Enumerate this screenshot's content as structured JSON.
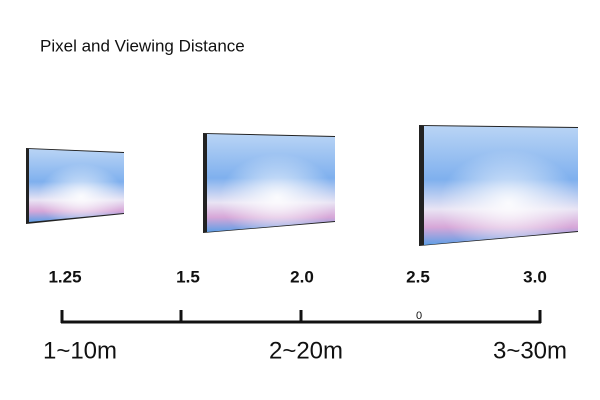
{
  "title": "Pixel and Viewing Distance",
  "pitch_labels": [
    "1.25",
    "1.5",
    "2.0",
    "2.5",
    "3.0"
  ],
  "scale_marker": "0",
  "distance_labels": [
    "1~10m",
    "2~20m",
    "3~30m"
  ]
}
